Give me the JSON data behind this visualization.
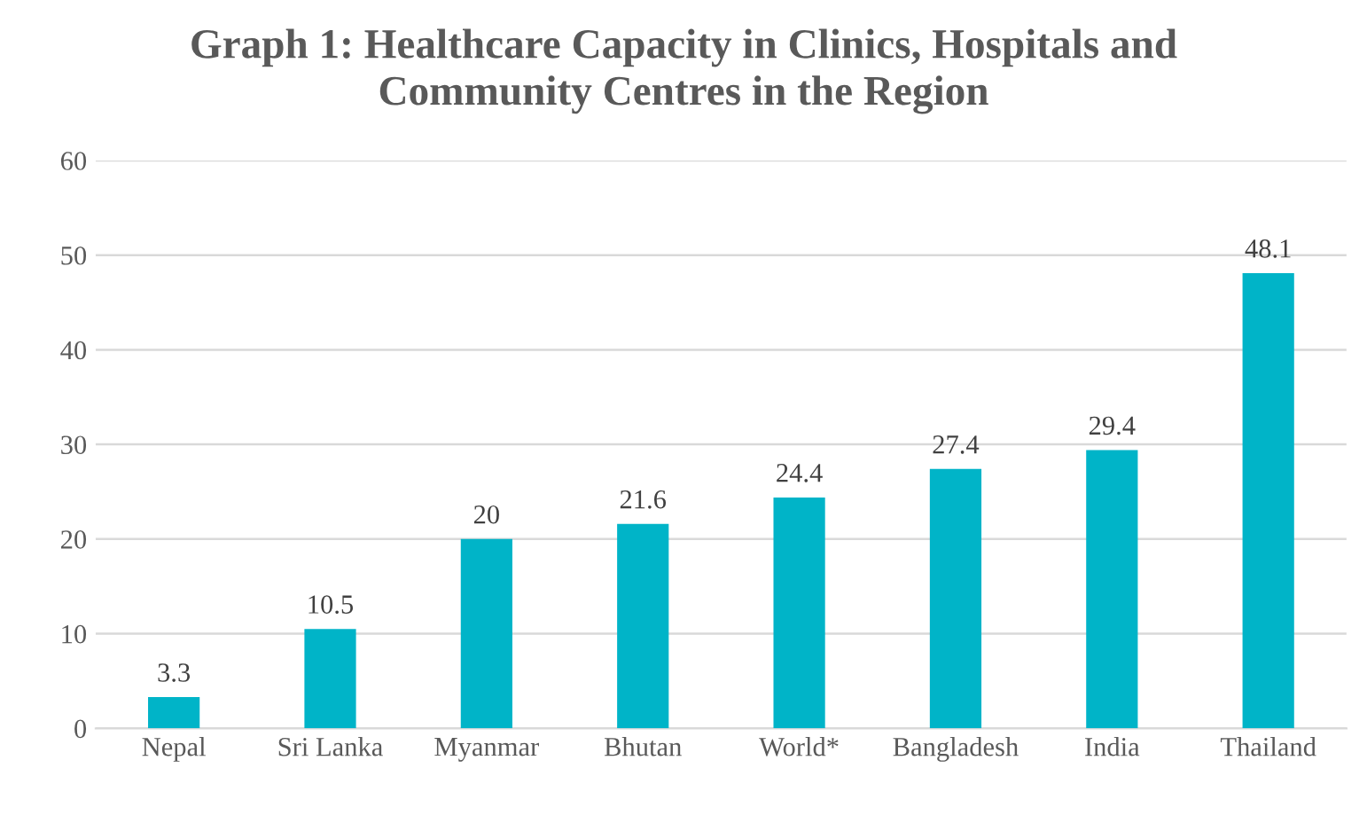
{
  "chart_data": {
    "type": "bar",
    "title": "Graph 1: Healthcare Capacity in Clinics, Hospitals and\nCommunity Centres in the Region",
    "categories": [
      "Nepal",
      "Sri Lanka",
      "Myanmar",
      "Bhutan",
      "World*",
      "Bangladesh",
      "India",
      "Thailand"
    ],
    "values": [
      3.3,
      10.5,
      20,
      21.6,
      24.4,
      27.4,
      29.4,
      48.1
    ],
    "color": "#00b4c8",
    "ylim": [
      0,
      60
    ],
    "yticks": [
      0,
      10,
      20,
      30,
      40,
      50,
      60
    ],
    "grid": "y",
    "data_labels": true
  }
}
